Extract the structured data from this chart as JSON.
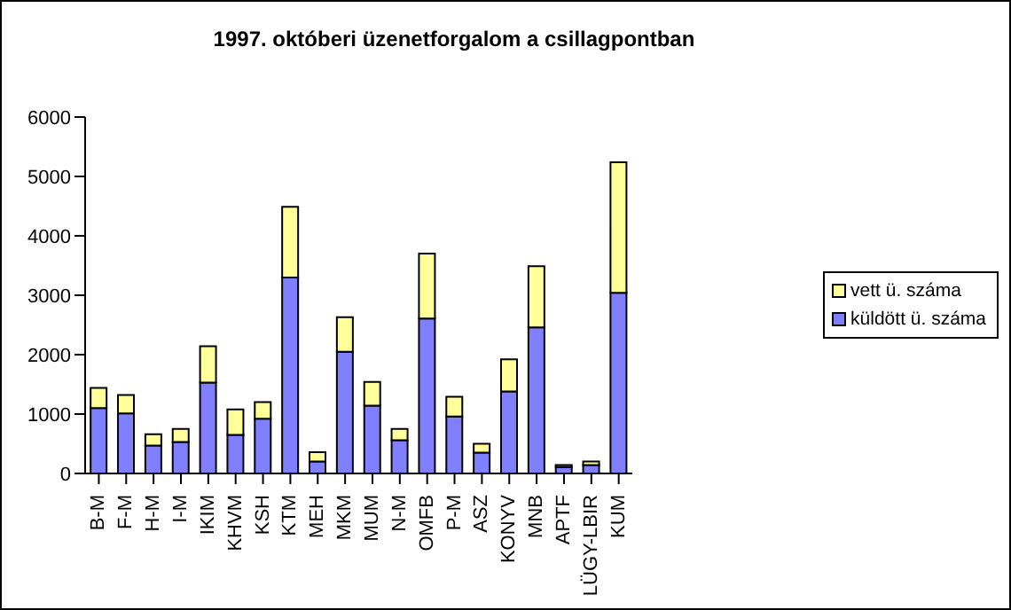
{
  "chart_data": {
    "type": "bar",
    "title": "1997. októberi üzenetforgalom a csillagpontban",
    "categories": [
      "B-M",
      "F-M",
      "H-M",
      "I-M",
      "IKIM",
      "KHVM",
      "KSH",
      "KTM",
      "MEH",
      "MKM",
      "MUM",
      "N-M",
      "OMFB",
      "P-M",
      "ASZ",
      "KONYV",
      "MNB",
      "APTF",
      "LÜGY-LBIR",
      "KUM"
    ],
    "stacked": true,
    "series": [
      {
        "name": "küldött ü. száma",
        "color": "#8080ff",
        "values": [
          1100,
          1010,
          470,
          530,
          1530,
          650,
          920,
          3300,
          200,
          2050,
          1140,
          560,
          2610,
          960,
          350,
          1380,
          2460,
          110,
          140,
          3040
        ]
      },
      {
        "name": "vett ü. száma",
        "color": "#ffff99",
        "values": [
          340,
          310,
          190,
          220,
          610,
          430,
          280,
          1190,
          160,
          580,
          400,
          190,
          1090,
          330,
          150,
          540,
          1030,
          30,
          60,
          2200
        ]
      }
    ],
    "ylim": [
      0,
      6000
    ],
    "yticks": [
      0,
      1000,
      2000,
      3000,
      4000,
      5000,
      6000
    ],
    "grid": false,
    "legend": "right"
  }
}
